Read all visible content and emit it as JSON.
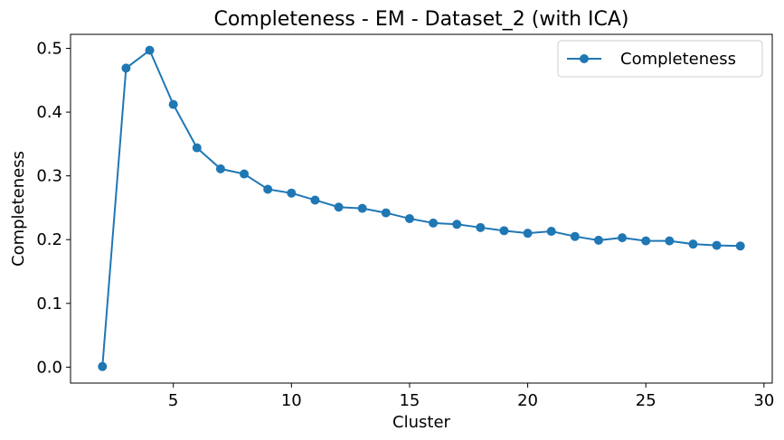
{
  "chart_data": {
    "type": "line",
    "title": "Completeness - EM - Dataset_2 (with ICA)",
    "xlabel": "Cluster",
    "ylabel": "Completeness",
    "xlim": [
      0.65,
      30.35
    ],
    "ylim": [
      -0.025,
      0.522
    ],
    "xticks": [
      5,
      10,
      15,
      20,
      25,
      30
    ],
    "yticks": [
      0.0,
      0.1,
      0.2,
      0.3,
      0.4,
      0.5
    ],
    "ytick_labels": [
      "0.0",
      "0.1",
      "0.2",
      "0.3",
      "0.4",
      "0.5"
    ],
    "grid": false,
    "legend_position": "top-right",
    "series": [
      {
        "name": "Completeness",
        "color": "#1f77b4",
        "marker": "circle",
        "x": [
          2,
          3,
          4,
          5,
          6,
          7,
          8,
          9,
          10,
          11,
          12,
          13,
          14,
          15,
          16,
          17,
          18,
          19,
          20,
          21,
          22,
          23,
          24,
          25,
          26,
          27,
          28,
          29
        ],
        "y": [
          0.001,
          0.469,
          0.497,
          0.412,
          0.344,
          0.311,
          0.303,
          0.279,
          0.273,
          0.262,
          0.251,
          0.249,
          0.242,
          0.233,
          0.226,
          0.224,
          0.219,
          0.214,
          0.21,
          0.213,
          0.205,
          0.199,
          0.203,
          0.198,
          0.198,
          0.193,
          0.191,
          0.19
        ]
      }
    ]
  }
}
